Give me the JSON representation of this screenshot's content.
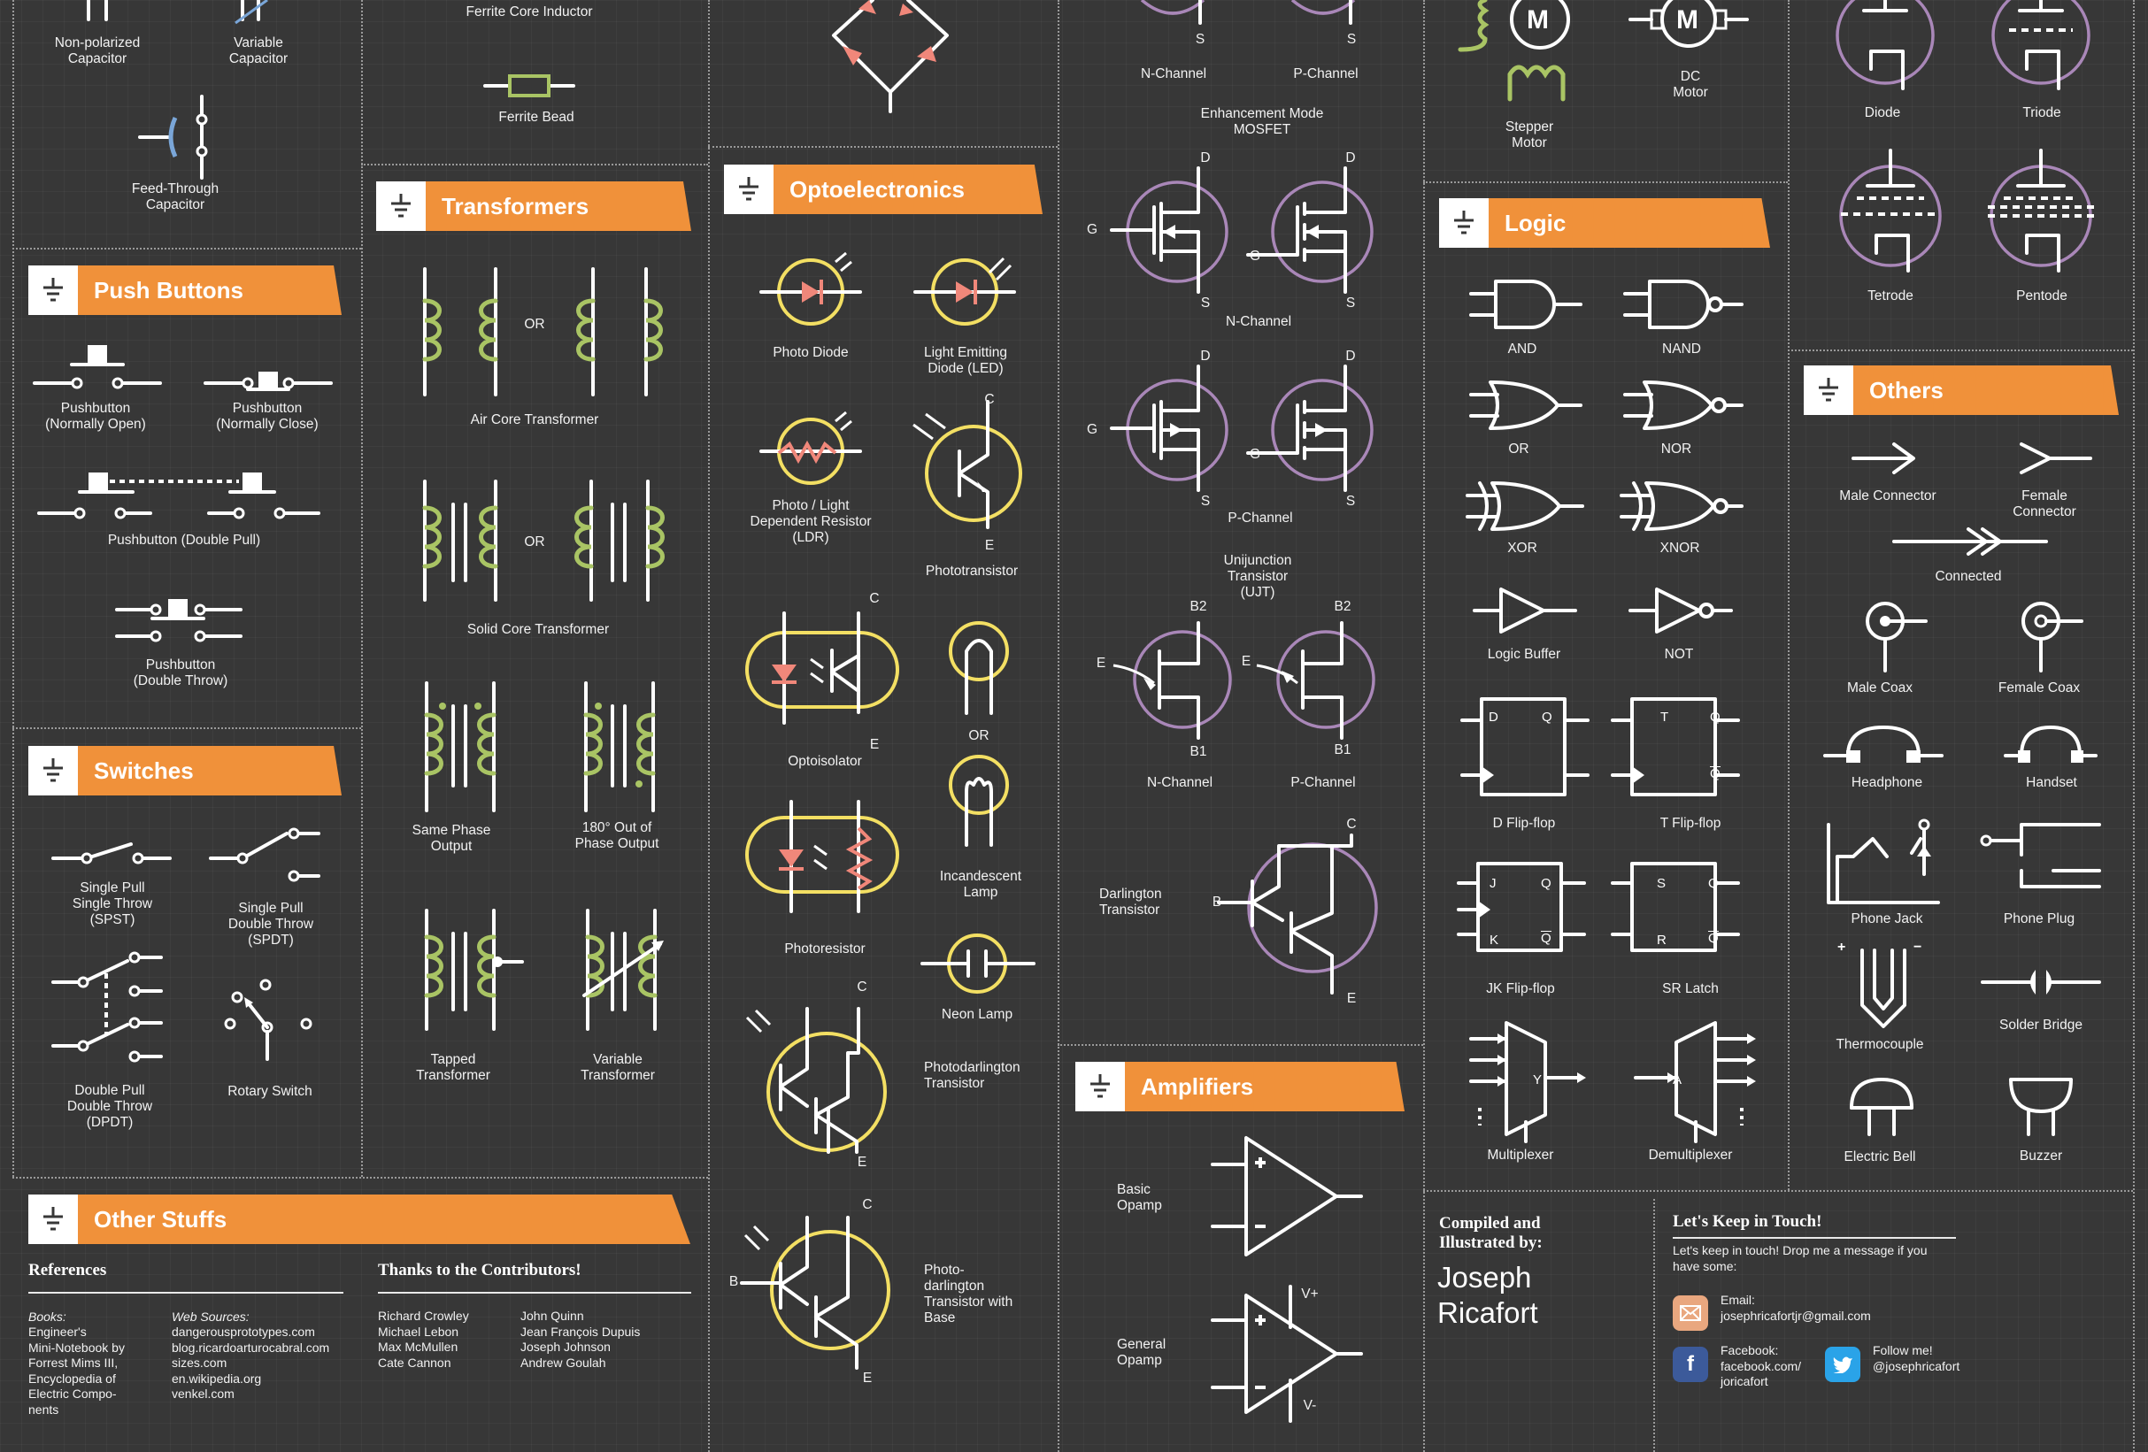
{
  "sections": {
    "push_buttons": "Push Buttons",
    "switches": "Switches",
    "transformers": "Transformers",
    "optoelectronics": "Optoelectronics",
    "logic": "Logic",
    "others": "Others",
    "amplifiers": "Amplifiers",
    "other_stuffs": "Other Stuffs"
  },
  "capacitors": {
    "nonpolar": "Non-polarized\nCapacitor",
    "variable": "Variable\nCapacitor",
    "feedthrough": "Feed-Through\nCapacitor"
  },
  "inductors": {
    "ferrite_core": "Ferrite Core Inductor",
    "ferrite_bead": "Ferrite Bead"
  },
  "push": {
    "no": "Pushbutton\n(Normally Open)",
    "nc": "Pushbutton\n(Normally Close)",
    "double_pull": "Pushbutton (Double Pull)",
    "double_throw": "Pushbutton\n(Double Throw)"
  },
  "switch": {
    "spst": "Single Pull\nSingle Throw\n(SPST)",
    "spdt": "Single Pull\nDouble Throw\n(SPDT)",
    "dpdt": "Double Pull\nDouble Throw\n(DPDT)",
    "rotary": "Rotary Switch"
  },
  "transformer": {
    "or": "OR",
    "air": "Air Core Transformer",
    "solid": "Solid Core Transformer",
    "same": "Same Phase\nOutput",
    "out": "180° Out of\nPhase Output",
    "tapped": "Tapped\nTransformer",
    "variable": "Variable\nTransformer"
  },
  "opto": {
    "photodiode": "Photo Diode",
    "led": "Light Emitting\nDiode (LED)",
    "ldr": "Photo / Light\nDependent Resistor\n(LDR)",
    "phototransistor": "Phototransistor",
    "optoisolator": "Optoisolator",
    "or": "OR",
    "photoresistor": "Photoresistor",
    "incandescent": "Incandescent\nLamp",
    "neon": "Neon Lamp",
    "photodarlington": "Photodarlington\nTransistor",
    "photodarlington_base": "Photo-\ndarlington\nTransistor with\nBase"
  },
  "mosfet": {
    "n_channel": "N-Channel",
    "p_channel": "P-Channel",
    "enhancement": "Enhancement Mode\nMOSFET",
    "n_channel2": "N-Channel",
    "p_channel2": "P-Channel",
    "ujt": "Unijunction\nTransistor\n(UJT)",
    "ujt_n": "N-Channel",
    "ujt_p": "P-Channel",
    "darlington": "Darlington\nTransistor"
  },
  "pins": {
    "d": "D",
    "s": "S",
    "g": "G",
    "b1": "B1",
    "b2": "B2",
    "e": "E",
    "c": "C",
    "b": "B"
  },
  "motors": {
    "stepper": "Stepper\nMotor",
    "dc": "DC\nMotor",
    "m": "M"
  },
  "logic": {
    "and": "AND",
    "nand": "NAND",
    "or": "OR",
    "nor": "NOR",
    "xor": "XOR",
    "xnor": "XNOR",
    "buffer": "Logic Buffer",
    "not": "NOT",
    "dff": "D Flip-flop",
    "tff": "T Flip-flop",
    "jkff": "JK Flip-flop",
    "sr": "SR Latch",
    "mux": "Multiplexer",
    "demux": "Demultiplexer"
  },
  "ff_pins": {
    "d": "D",
    "q": "Q",
    "qbar": "Q",
    "t": "T",
    "j": "J",
    "k": "K",
    "s": "S",
    "r": "R",
    "y": "Y",
    "a": "A"
  },
  "tubes": {
    "diode": "Diode",
    "triode": "Triode",
    "tetrode": "Tetrode",
    "pentode": "Pentode"
  },
  "others": {
    "male_conn": "Male Connector",
    "female_conn": "Female Connector",
    "connected": "Connected",
    "male_coax": "Male Coax",
    "female_coax": "Female Coax",
    "headphone": "Headphone",
    "handset": "Handset",
    "phone_jack": "Phone Jack",
    "phone_plug": "Phone Plug",
    "thermocouple": "Thermocouple",
    "solder": "Solder Bridge",
    "bell": "Electric Bell",
    "buzzer": "Buzzer",
    "plus": "+",
    "minus": "−"
  },
  "amplifiers": {
    "basic": "Basic\nOpamp",
    "general": "General\nOpamp",
    "vplus": "V+",
    "vminus": "V-"
  },
  "references": {
    "title": "References",
    "books_label": "Books:",
    "books": "Engineer's\nMini-Notebook by\nForrest Mims III,\nEncyclopedia of\nElectric Compo-\nnents",
    "web_label": "Web Sources:",
    "web": "dangerousprototypes.com\nblog.ricardoarturocabral.com\nsizes.com\nen.wikipedia.org\nvenkel.com"
  },
  "thanks": {
    "title": "Thanks to the Contributors!",
    "col1": "Richard Crowley\nMichael Lebon\nMax McMullen\nCate Cannon",
    "col2": "John Quinn\nJean François Dupuis\nJoseph Johnson\nAndrew Goulah"
  },
  "credits": {
    "compiled": "Compiled and\nIllustrated by:",
    "name": "Joseph\nRicafort"
  },
  "contact": {
    "title": "Let's Keep in Touch!",
    "desc": "Let's keep in touch! Drop me a message if you\nhave some:",
    "email": "Email:\njosephricafortjr@gmail.com",
    "facebook": "Facebook:\nfacebook.com/\njoricafort",
    "twitter": "Follow me!\n@josephricafort"
  },
  "colors": {
    "accent": "#f0913a",
    "background": "#373737",
    "green": "#a9c464",
    "yellow": "#f3df63",
    "purple": "#a987b8",
    "pink": "#f0877a"
  }
}
